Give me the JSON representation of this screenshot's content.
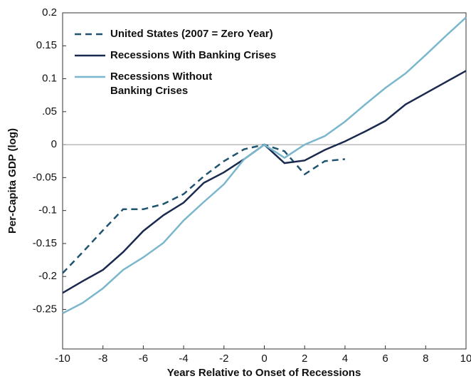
{
  "chart_data": {
    "type": "line",
    "x_label": "Years Relative to Onset of Recessions",
    "y_label": "Per-Capita GDP (log)",
    "x": [
      -10,
      -9,
      -8,
      -7,
      -6,
      -5,
      -4,
      -3,
      -2,
      -1,
      0,
      1,
      2,
      3,
      4,
      5,
      6,
      7,
      8,
      9,
      10
    ],
    "series": [
      {
        "name": "United States (2007 = Zero Year)",
        "color": "#1f5470",
        "dashed": true,
        "values": [
          -0.195,
          -0.163,
          -0.13,
          -0.098,
          -0.098,
          -0.09,
          -0.075,
          -0.048,
          -0.025,
          -0.007,
          0,
          -0.01,
          -0.045,
          -0.025,
          -0.022,
          null,
          null,
          null,
          null,
          null,
          null
        ]
      },
      {
        "name": "Recessions With Banking Crises",
        "color": "#1a2a4e",
        "dashed": false,
        "values": [
          -0.225,
          -0.207,
          -0.19,
          -0.163,
          -0.131,
          -0.107,
          -0.088,
          -0.058,
          -0.042,
          -0.022,
          0,
          -0.028,
          -0.024,
          -0.008,
          0.005,
          0.02,
          0.036,
          0.061,
          0.078,
          0.095,
          0.112
        ]
      },
      {
        "name": "Recessions Without\nBanking Crises",
        "color": "#7ab6cc",
        "dashed": false,
        "values": [
          -0.256,
          -0.24,
          -0.218,
          -0.19,
          -0.171,
          -0.149,
          -0.115,
          -0.087,
          -0.06,
          -0.022,
          0,
          -0.02,
          0,
          0.013,
          0.035,
          0.061,
          0.086,
          0.108,
          0.136,
          0.165,
          0.193
        ]
      }
    ],
    "xlim": [
      -10,
      10
    ],
    "xticks": [
      -10,
      -8,
      -6,
      -4,
      -2,
      0,
      2,
      4,
      6,
      8,
      10
    ],
    "ylim": [
      -0.31,
      0.2
    ],
    "yticks": [
      0.2,
      0.15,
      0.1,
      {
        "value": 0.05,
        "label": ".05"
      },
      0,
      -0.05,
      -0.1,
      -0.15,
      -0.2,
      -0.25
    ],
    "legend": "upper-left"
  }
}
